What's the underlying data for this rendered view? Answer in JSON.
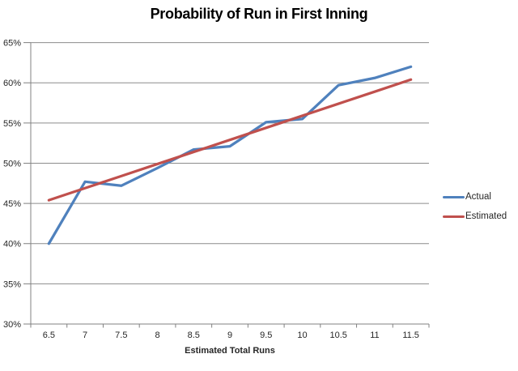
{
  "chart_data": {
    "type": "line",
    "title": "Probability of Run in First Inning",
    "xlabel": "Estimated Total Runs",
    "ylabel": "",
    "categories": [
      "6.5",
      "7",
      "7.5",
      "8",
      "8.5",
      "9",
      "9.5",
      "10",
      "10.5",
      "11",
      "11.5"
    ],
    "series": [
      {
        "name": "Actual",
        "color": "#4F81BD",
        "values": [
          40.0,
          47.7,
          47.2,
          49.4,
          51.7,
          52.1,
          55.1,
          55.5,
          59.7,
          60.6,
          62.0
        ]
      },
      {
        "name": "Estimated",
        "color": "#C0504D",
        "values": [
          45.4,
          46.9,
          48.4,
          49.9,
          51.4,
          52.9,
          54.4,
          55.9,
          57.4,
          58.9,
          60.4
        ]
      }
    ],
    "y_axis": {
      "min": 30,
      "max": 65,
      "step": 5,
      "tick_labels": [
        "30%",
        "35%",
        "40%",
        "45%",
        "50%",
        "55%",
        "60%",
        "65%"
      ]
    },
    "grid": true,
    "legend_position": "right",
    "colors": {
      "gridline": "#8C8C8C",
      "axis": "#808080",
      "tick_text": "#262626",
      "title_text": "#000000",
      "background": "#FFFFFF"
    }
  }
}
